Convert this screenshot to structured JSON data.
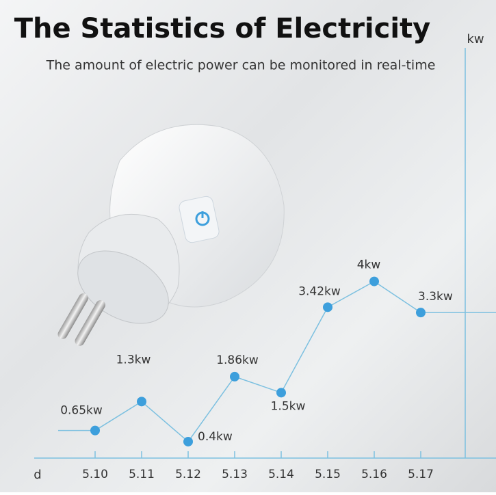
{
  "chart_data": {
    "type": "line",
    "title": "The Statistics of Electricity",
    "subtitle": "The amount of electric power can be monitored in real-time",
    "y_label": "kw",
    "x_label": "d",
    "categories": [
      "5.10",
      "5.11",
      "5.12",
      "5.13",
      "5.14",
      "5.15",
      "5.16",
      "5.17"
    ],
    "values": [
      0.65,
      1.3,
      0.4,
      1.86,
      1.5,
      3.42,
      4,
      3.3
    ],
    "value_labels": [
      "0.65kw",
      "1.3kw",
      "0.4kw",
      "1.86kw",
      "1.5kw",
      "3.42kw",
      "4kw",
      "3.3kw"
    ],
    "ylim": [
      0,
      9.4
    ],
    "color": "#7cc0e0",
    "point_color": "#3d9fdc"
  }
}
